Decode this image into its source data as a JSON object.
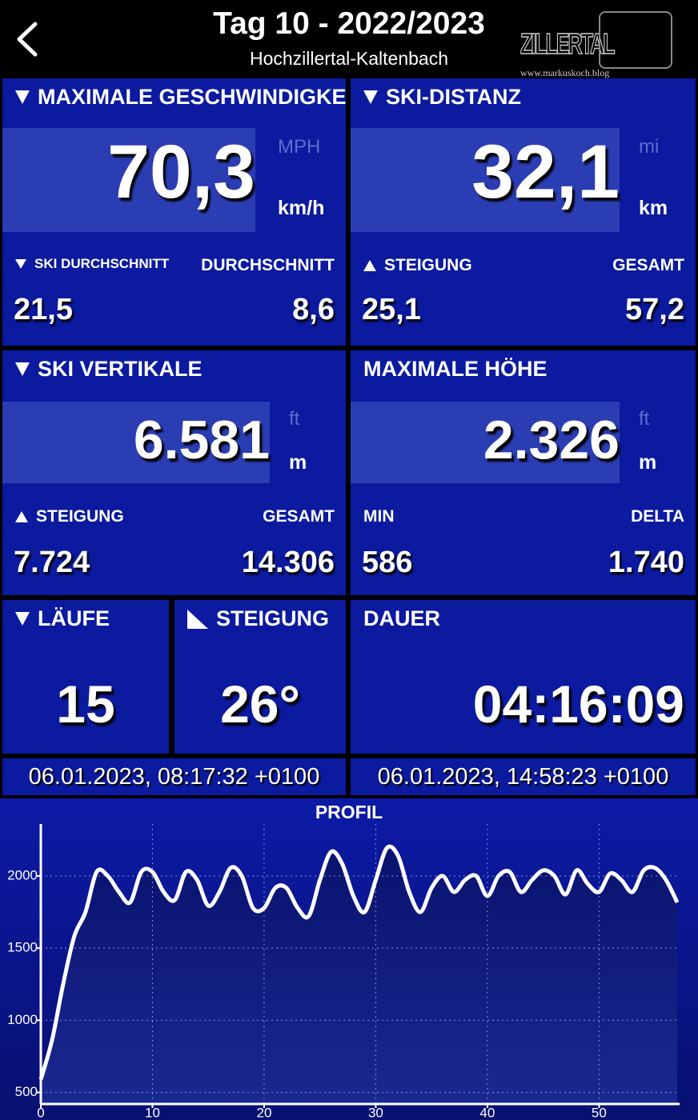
{
  "header": {
    "title": "Tag 10 - 2022/2023",
    "subtitle": "Hochzillertal-Kaltenbach",
    "logo": "ZILLERTAL",
    "logo_url": "www.markuskoch.blog"
  },
  "tiles": [
    {
      "title": "MAXIMALE GESCHWINDIGKEIT",
      "value": "70,3",
      "alt_unit": "MPH",
      "unit": "km/h",
      "left_label": "SKI DURCHSCHNITT",
      "left_value": "21,5",
      "right_label": "DURCHSCHNITT",
      "right_value": "8,6"
    },
    {
      "title": "SKI-DISTANZ",
      "value": "32,1",
      "alt_unit": "mi",
      "unit": "km",
      "left_label": "STEIGUNG",
      "left_value": "25,1",
      "right_label": "GESAMT",
      "right_value": "57,2"
    },
    {
      "title": "SKI VERTIKALE",
      "value": "6.581",
      "alt_unit": "ft",
      "unit": "m",
      "left_label": "STEIGUNG",
      "left_value": "7.724",
      "right_label": "GESAMT",
      "right_value": "14.306"
    },
    {
      "title": "MAXIMALE HÖHE",
      "value": "2.326",
      "alt_unit": "ft",
      "unit": "m",
      "left_label": "MIN",
      "left_value": "586",
      "right_label": "DELTA",
      "right_value": "1.740"
    },
    {
      "title": "LÄUFE",
      "value": "15"
    },
    {
      "title": "STEIGUNG",
      "value": "26°"
    },
    {
      "title": "DAUER",
      "value": "04:16:09"
    }
  ],
  "times": {
    "start": "06.01.2023, 08:17:32 +0100",
    "end": "06.01.2023, 14:58:23 +0100"
  },
  "chart_data": {
    "type": "area",
    "title": "PROFIL",
    "x": [
      0,
      1,
      2,
      3,
      4,
      5,
      6,
      7,
      8,
      9,
      10,
      11,
      12,
      13,
      14,
      15,
      16,
      17,
      18,
      19,
      20,
      21,
      22,
      23,
      24,
      25,
      26,
      27,
      28,
      29,
      30,
      31,
      32,
      33,
      34,
      35,
      36,
      37,
      38,
      39,
      40,
      41,
      42,
      43,
      44,
      45,
      46,
      47,
      48,
      49,
      50,
      51,
      52,
      53,
      54,
      55,
      56,
      57
    ],
    "values": [
      590,
      861,
      1250,
      1583,
      1750,
      2028,
      2000,
      1889,
      1817,
      2028,
      2028,
      1889,
      1833,
      2028,
      1972,
      1794,
      1889,
      2056,
      2000,
      1778,
      1778,
      1917,
      1917,
      1778,
      1722,
      1972,
      2167,
      2083,
      1861,
      1750,
      1972,
      2194,
      2139,
      1889,
      1750,
      1917,
      2000,
      1889,
      1972,
      2000,
      1861,
      2000,
      2028,
      1889,
      1972,
      2039,
      2000,
      1872,
      2039,
      1944,
      1889,
      2017,
      1972,
      1889,
      2039,
      2056,
      1972,
      1817
    ],
    "color": "#ffffff",
    "xlim": [
      0,
      57
    ],
    "ylim": [
      420,
      2360
    ],
    "xticks": [
      0,
      10,
      20,
      30,
      40,
      50
    ],
    "yticks": [
      500,
      1000,
      1500,
      2000
    ],
    "grid": true
  }
}
